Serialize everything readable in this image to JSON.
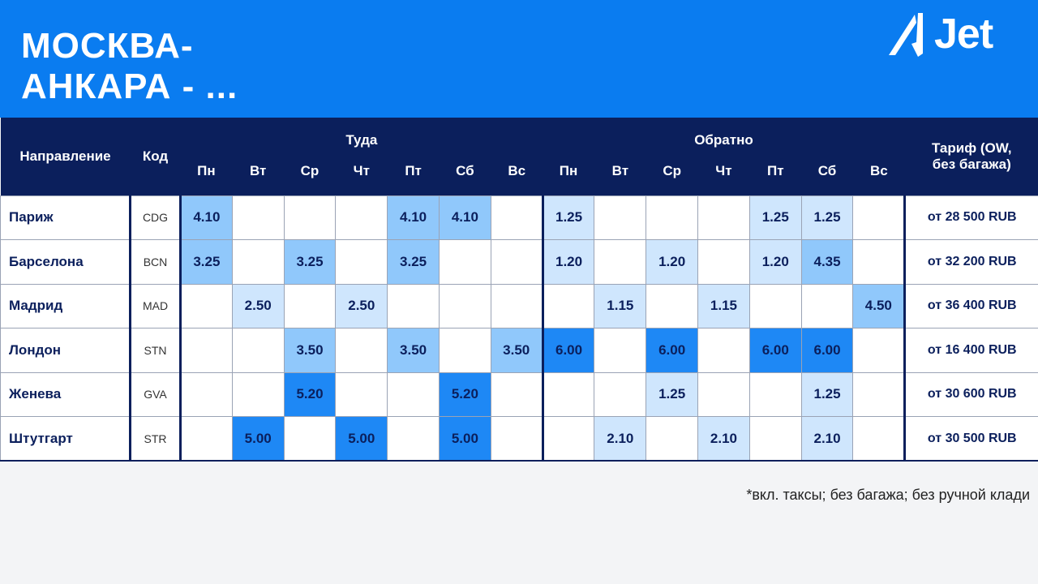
{
  "header": {
    "title_line1": "МОСКВА-",
    "title_line2": "АНКАРА - ...",
    "logo": "Jet"
  },
  "table": {
    "col_direction": "Направление",
    "col_code": "Код",
    "group_out": "Туда",
    "group_back": "Обратно",
    "col_tariff": "Тариф (OW, без багажа)",
    "days": [
      "Пн",
      "Вт",
      "Ср",
      "Чт",
      "Пт",
      "Сб",
      "Вс",
      "Пн",
      "Вт",
      "Ср",
      "Чт",
      "Пт",
      "Сб",
      "Вс"
    ],
    "rows": [
      {
        "name": "Париж",
        "code": "CDG",
        "cells": [
          "4.10",
          "",
          "",
          "",
          "4.10",
          "4.10",
          "",
          "1.25",
          "",
          "",
          "",
          "1.25",
          "1.25",
          ""
        ],
        "levels": [
          2,
          0,
          0,
          0,
          2,
          2,
          0,
          1,
          0,
          0,
          0,
          1,
          1,
          0
        ],
        "tariff": "от 28 500 RUB"
      },
      {
        "name": "Барселона",
        "code": "BCN",
        "cells": [
          "3.25",
          "",
          "3.25",
          "",
          "3.25",
          "",
          "",
          "1.20",
          "",
          "1.20",
          "",
          "1.20",
          "4.35",
          ""
        ],
        "levels": [
          2,
          0,
          2,
          0,
          2,
          0,
          0,
          1,
          0,
          1,
          0,
          1,
          2,
          0
        ],
        "tariff": "от 32 200 RUB"
      },
      {
        "name": "Мадрид",
        "code": "MAD",
        "cells": [
          "",
          "2.50",
          "",
          "2.50",
          "",
          "",
          "",
          "",
          "1.15",
          "",
          "1.15",
          "",
          "",
          "4.50"
        ],
        "levels": [
          0,
          1,
          0,
          1,
          0,
          0,
          0,
          0,
          1,
          0,
          1,
          0,
          0,
          2
        ],
        "tariff": "от 36 400 RUB"
      },
      {
        "name": "Лондон",
        "code": "STN",
        "cells": [
          "",
          "",
          "3.50",
          "",
          "3.50",
          "",
          "3.50",
          "6.00",
          "",
          "6.00",
          "",
          "6.00",
          "6.00",
          ""
        ],
        "levels": [
          0,
          0,
          2,
          0,
          2,
          0,
          2,
          3,
          0,
          3,
          0,
          3,
          3,
          0
        ],
        "tariff": "от 16 400 RUB"
      },
      {
        "name": "Женева",
        "code": "GVA",
        "cells": [
          "",
          "",
          "5.20",
          "",
          "",
          "5.20",
          "",
          "",
          "",
          "1.25",
          "",
          "",
          "1.25",
          ""
        ],
        "levels": [
          0,
          0,
          3,
          0,
          0,
          3,
          0,
          0,
          0,
          1,
          0,
          0,
          1,
          0
        ],
        "tariff": "от 30 600 RUB"
      },
      {
        "name": "Штутгарт",
        "code": "STR",
        "cells": [
          "",
          "5.00",
          "",
          "5.00",
          "",
          "5.00",
          "",
          "",
          "2.10",
          "",
          "2.10",
          "",
          "2.10",
          ""
        ],
        "levels": [
          0,
          3,
          0,
          3,
          0,
          3,
          0,
          0,
          1,
          0,
          1,
          0,
          1,
          0
        ],
        "tariff": "от 30 500 RUB"
      }
    ]
  },
  "footnote": "*вкл. таксы; без багажа; без ручной клади"
}
